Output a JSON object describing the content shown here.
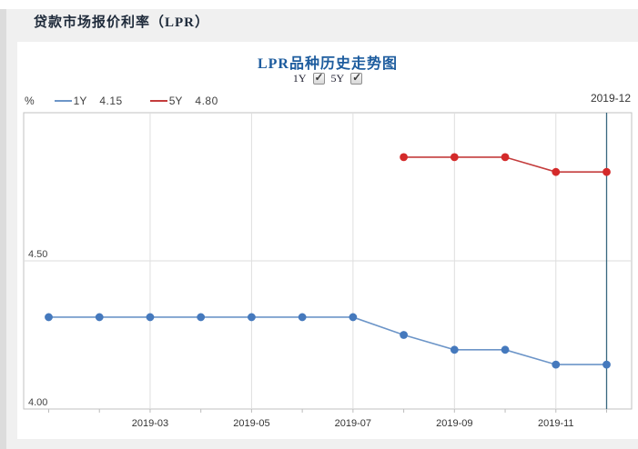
{
  "page": {
    "header_title": "贷款市场报价利率（LPR）"
  },
  "chart": {
    "title": "LPR品种历史走势图",
    "unit_label": "%",
    "current_period": "2019-12",
    "toggles": [
      {
        "label": "1Y",
        "checked": true
      },
      {
        "label": "5Y",
        "checked": true
      }
    ],
    "legend": [
      {
        "label": "1Y",
        "value": "4.15",
        "color": "#6c95c8"
      },
      {
        "label": "5Y",
        "value": "4.80",
        "color": "#c43c3c"
      }
    ]
  },
  "chart_data": {
    "type": "line",
    "title": "LPR品种历史走势图",
    "ylabel": "%",
    "x": [
      "2019-01",
      "2019-02",
      "2019-03",
      "2019-04",
      "2019-05",
      "2019-06",
      "2019-07",
      "2019-08",
      "2019-09",
      "2019-10",
      "2019-11",
      "2019-12"
    ],
    "series": [
      {
        "name": "1Y",
        "line_color": "#6c95c8",
        "marker_color": "#4579bd",
        "values": [
          4.31,
          4.31,
          4.31,
          4.31,
          4.31,
          4.31,
          4.31,
          4.25,
          4.2,
          4.2,
          4.15,
          4.15
        ]
      },
      {
        "name": "5Y",
        "line_color": "#c43c3c",
        "marker_color": "#d42a2a",
        "values": [
          null,
          null,
          null,
          null,
          null,
          null,
          null,
          4.85,
          4.85,
          4.85,
          4.8,
          4.8
        ]
      }
    ],
    "ylim": [
      4.0,
      5.0
    ],
    "yticks": [
      4.0,
      4.5
    ],
    "ytick_labels": [
      "4.00",
      "4.50"
    ],
    "xtick_indices": [
      2,
      4,
      6,
      8,
      10
    ],
    "xtick_labels": [
      "2019-03",
      "2019-05",
      "2019-07",
      "2019-09",
      "2019-11"
    ],
    "current_index": 11,
    "current_line_color": "#38687e",
    "grid": true,
    "legend_position": "top-left"
  }
}
